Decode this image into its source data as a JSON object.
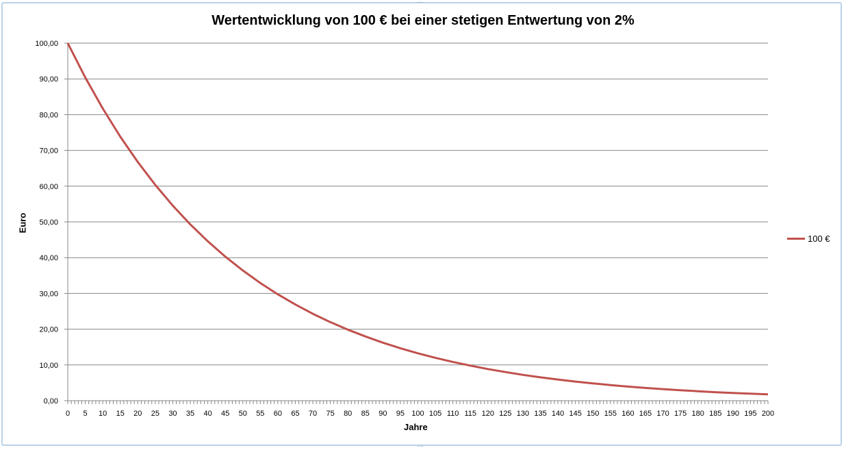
{
  "chart_data": {
    "type": "line",
    "title": "Wertentwicklung von 100 € bei einer stetigen Entwertung von 2%",
    "xlabel": "Jahre",
    "ylabel": "Euro",
    "xlim": [
      0,
      200
    ],
    "ylim": [
      0,
      100
    ],
    "grid": true,
    "legend_position": "right",
    "y_ticks": [
      "0,00",
      "10,00",
      "20,00",
      "30,00",
      "40,00",
      "50,00",
      "60,00",
      "70,00",
      "80,00",
      "90,00",
      "100,00"
    ],
    "x_tick_step": 5,
    "series": [
      {
        "name": "100 €",
        "color": "#c0504d",
        "x": [
          0,
          5,
          10,
          15,
          20,
          25,
          30,
          35,
          40,
          45,
          50,
          55,
          60,
          65,
          70,
          75,
          80,
          85,
          90,
          95,
          100,
          105,
          110,
          115,
          120,
          125,
          130,
          135,
          140,
          145,
          150,
          155,
          160,
          165,
          170,
          175,
          180,
          185,
          190,
          195,
          200
        ],
        "values": [
          100,
          90.39,
          81.71,
          73.86,
          66.76,
          60.35,
          54.55,
          49.31,
          44.57,
          40.29,
          36.42,
          32.92,
          29.76,
          26.9,
          24.31,
          21.98,
          19.87,
          17.96,
          16.23,
          14.67,
          13.26,
          11.99,
          10.84,
          9.8,
          8.85,
          8.0,
          7.23,
          6.54,
          5.91,
          5.34,
          4.83,
          4.37,
          3.95,
          3.57,
          3.23,
          2.92,
          2.64,
          2.38,
          2.15,
          1.95,
          1.76
        ]
      }
    ]
  }
}
